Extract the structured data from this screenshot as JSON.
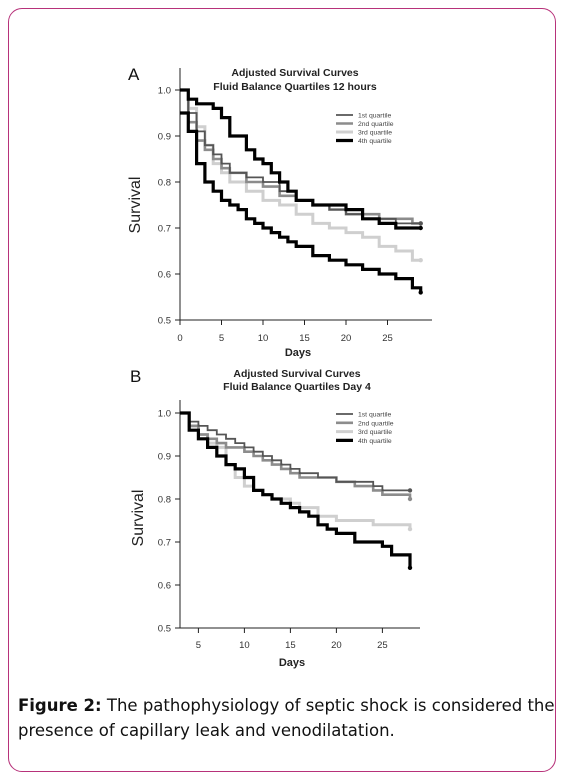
{
  "chart_data": [
    {
      "panel_label": "A",
      "type": "line",
      "title": "Adjusted Survival Curves",
      "subtitle": "Fluid Balance Quartiles 12 hours",
      "xlabel": "Days",
      "ylabel": "Survival",
      "xlim": [
        0,
        30
      ],
      "ylim": [
        0.5,
        1.0
      ],
      "xticks": [
        0,
        5,
        10,
        15,
        20,
        25
      ],
      "yticks": [
        0.5,
        0.6,
        0.7,
        0.8,
        0.9,
        1.0
      ],
      "legend_position": "top-right",
      "series": [
        {
          "name": "1st quartile",
          "color": "#555555",
          "x": [
            0,
            1,
            2,
            3,
            4,
            5,
            6,
            8,
            10,
            12,
            14,
            16,
            18,
            20,
            22,
            24,
            26,
            28,
            29
          ],
          "y": [
            1.0,
            0.95,
            0.91,
            0.88,
            0.86,
            0.84,
            0.82,
            0.81,
            0.8,
            0.78,
            0.76,
            0.75,
            0.74,
            0.73,
            0.72,
            0.72,
            0.71,
            0.71,
            0.71
          ]
        },
        {
          "name": "2nd quartile",
          "color": "#8c8c8c",
          "x": [
            0,
            1,
            2,
            3,
            4,
            5,
            6,
            8,
            10,
            12,
            14,
            16,
            18,
            20,
            22,
            24,
            26,
            28,
            29
          ],
          "y": [
            1.0,
            0.93,
            0.89,
            0.87,
            0.85,
            0.83,
            0.82,
            0.8,
            0.79,
            0.77,
            0.76,
            0.75,
            0.74,
            0.73,
            0.73,
            0.72,
            0.72,
            0.71,
            0.71
          ]
        },
        {
          "name": "3rd quartile",
          "color": "#cfcfcf",
          "x": [
            0,
            1,
            2,
            3,
            4,
            5,
            6,
            8,
            10,
            12,
            14,
            16,
            18,
            20,
            22,
            24,
            26,
            28,
            29
          ],
          "y": [
            1.0,
            0.96,
            0.92,
            0.88,
            0.84,
            0.82,
            0.8,
            0.78,
            0.76,
            0.75,
            0.73,
            0.71,
            0.7,
            0.69,
            0.68,
            0.66,
            0.65,
            0.63,
            0.63
          ]
        },
        {
          "name": "4th quartile",
          "color": "#000000",
          "x": [
            0,
            1,
            2,
            3,
            4,
            5,
            6,
            7,
            8,
            9,
            10,
            11,
            12,
            13,
            14,
            16,
            18,
            20,
            22,
            24,
            26,
            28,
            29
          ],
          "y": [
            0.95,
            0.91,
            0.84,
            0.8,
            0.78,
            0.76,
            0.75,
            0.74,
            0.72,
            0.71,
            0.7,
            0.69,
            0.68,
            0.67,
            0.66,
            0.64,
            0.63,
            0.62,
            0.61,
            0.6,
            0.59,
            0.57,
            0.56
          ]
        },
        {
          "name": "",
          "color": "#000000",
          "x": [
            0,
            1,
            2,
            3,
            4,
            5,
            6,
            8,
            9,
            10,
            11,
            12,
            13,
            14,
            16,
            18,
            20,
            22,
            24,
            26,
            28,
            29
          ],
          "y": [
            1.0,
            0.98,
            0.97,
            0.97,
            0.96,
            0.94,
            0.9,
            0.87,
            0.85,
            0.84,
            0.82,
            0.8,
            0.78,
            0.76,
            0.75,
            0.75,
            0.74,
            0.72,
            0.71,
            0.7,
            0.7,
            0.7
          ]
        }
      ]
    },
    {
      "panel_label": "B",
      "type": "line",
      "title": "Adjusted Survival Curves",
      "subtitle": "Fluid Balance Quartiles Day 4",
      "xlabel": "Days",
      "ylabel": "Survival",
      "xlim": [
        3,
        28.5
      ],
      "ylim": [
        0.5,
        1.0
      ],
      "xticks": [
        5,
        10,
        15,
        20,
        25
      ],
      "yticks": [
        0.5,
        0.6,
        0.7,
        0.8,
        0.9,
        1.0
      ],
      "legend_position": "top-right",
      "series": [
        {
          "name": "1st quartile",
          "color": "#555555",
          "x": [
            3,
            4,
            5,
            6,
            7,
            8,
            9,
            10,
            11,
            12,
            13,
            14,
            15,
            16,
            18,
            20,
            22,
            24,
            25,
            26,
            28
          ],
          "y": [
            1.0,
            0.98,
            0.97,
            0.96,
            0.95,
            0.94,
            0.93,
            0.92,
            0.91,
            0.9,
            0.89,
            0.88,
            0.87,
            0.86,
            0.85,
            0.84,
            0.84,
            0.83,
            0.82,
            0.82,
            0.82
          ]
        },
        {
          "name": "2nd quartile",
          "color": "#8c8c8c",
          "x": [
            3,
            4,
            5,
            6,
            7,
            8,
            9,
            10,
            11,
            12,
            13,
            14,
            15,
            16,
            18,
            20,
            22,
            24,
            25,
            26,
            28
          ],
          "y": [
            1.0,
            0.97,
            0.95,
            0.94,
            0.93,
            0.92,
            0.92,
            0.91,
            0.9,
            0.89,
            0.88,
            0.87,
            0.86,
            0.85,
            0.85,
            0.84,
            0.83,
            0.82,
            0.81,
            0.81,
            0.8
          ]
        },
        {
          "name": "3rd quartile",
          "color": "#cfcfcf",
          "x": [
            3,
            4,
            5,
            6,
            7,
            8,
            9,
            10,
            11,
            12,
            13,
            14,
            15,
            16,
            18,
            20,
            22,
            24,
            26,
            28
          ],
          "y": [
            1.0,
            0.97,
            0.95,
            0.93,
            0.92,
            0.88,
            0.85,
            0.83,
            0.82,
            0.81,
            0.8,
            0.8,
            0.79,
            0.78,
            0.76,
            0.75,
            0.75,
            0.74,
            0.74,
            0.73
          ]
        },
        {
          "name": "4th quartile",
          "color": "#000000",
          "x": [
            3,
            4,
            5,
            6,
            7,
            8,
            9,
            10,
            11,
            12,
            13,
            14,
            15,
            16,
            17,
            18,
            19,
            20,
            22,
            24,
            25,
            26,
            28
          ],
          "y": [
            1.0,
            0.96,
            0.94,
            0.92,
            0.9,
            0.88,
            0.87,
            0.85,
            0.82,
            0.81,
            0.8,
            0.79,
            0.78,
            0.77,
            0.76,
            0.74,
            0.73,
            0.72,
            0.7,
            0.7,
            0.69,
            0.67,
            0.64
          ]
        }
      ]
    }
  ],
  "caption": {
    "label": "Figure 2:",
    "text": " The pathophysiology of septic shock is considered the presence of capillary leak and venodilatation."
  }
}
